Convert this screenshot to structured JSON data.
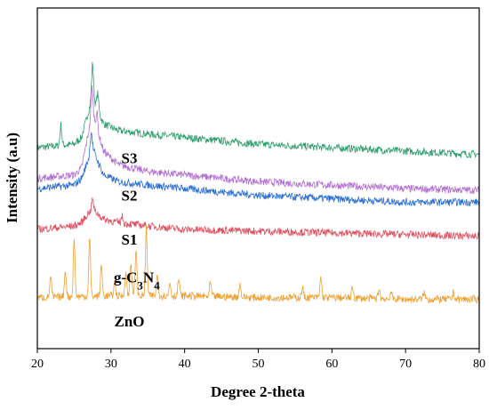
{
  "chart_data": {
    "type": "line",
    "title": "",
    "xlabel": "Degree 2-theta",
    "ylabel": "Intensity (a.u)",
    "xlim": [
      20,
      80
    ],
    "x_ticks": [
      "20",
      "30",
      "40",
      "50",
      "60",
      "70",
      "80"
    ],
    "y_ticks_shown": false,
    "grid": false,
    "legend": "none",
    "series": [
      {
        "name": "S3",
        "color": "#2e9e6b",
        "points": [
          [
            20,
            0.59
          ],
          [
            25,
            0.6
          ],
          [
            26,
            0.62
          ],
          [
            27,
            0.7
          ],
          [
            27.5,
            0.75
          ],
          [
            28,
            0.71
          ],
          [
            29,
            0.66
          ],
          [
            31,
            0.64
          ],
          [
            35,
            0.63
          ],
          [
            40,
            0.62
          ],
          [
            50,
            0.6
          ],
          [
            60,
            0.59
          ],
          [
            70,
            0.58
          ],
          [
            80,
            0.57
          ]
        ],
        "peaks": [
          [
            23.2,
            0.06
          ],
          [
            27.5,
            0.09
          ],
          [
            28.2,
            0.05
          ]
        ]
      },
      {
        "name": "S2",
        "color": "#b46fd6",
        "points": [
          [
            20,
            0.5
          ],
          [
            25,
            0.51
          ],
          [
            26,
            0.53
          ],
          [
            27,
            0.64
          ],
          [
            27.5,
            0.7
          ],
          [
            28,
            0.65
          ],
          [
            29,
            0.58
          ],
          [
            31,
            0.54
          ],
          [
            35,
            0.52
          ],
          [
            40,
            0.51
          ],
          [
            50,
            0.49
          ],
          [
            60,
            0.48
          ],
          [
            70,
            0.47
          ],
          [
            80,
            0.465
          ]
        ],
        "peaks": [
          [
            27.4,
            0.08
          ],
          [
            28.1,
            0.05
          ]
        ]
      },
      {
        "name": "S1",
        "color": "#2b6fd6",
        "points": [
          [
            20,
            0.47
          ],
          [
            25,
            0.48
          ],
          [
            26,
            0.5
          ],
          [
            27,
            0.56
          ],
          [
            27.5,
            0.59
          ],
          [
            28,
            0.56
          ],
          [
            29,
            0.51
          ],
          [
            31,
            0.49
          ],
          [
            35,
            0.48
          ],
          [
            40,
            0.47
          ],
          [
            50,
            0.45
          ],
          [
            60,
            0.44
          ],
          [
            70,
            0.43
          ],
          [
            80,
            0.43
          ]
        ],
        "peaks": [
          [
            27.3,
            0.06
          ]
        ]
      },
      {
        "name": "g-C3N4",
        "color": "#e05060",
        "points": [
          [
            20,
            0.35
          ],
          [
            25,
            0.36
          ],
          [
            26,
            0.37
          ],
          [
            27,
            0.4
          ],
          [
            27.5,
            0.41
          ],
          [
            28,
            0.4
          ],
          [
            29,
            0.38
          ],
          [
            31,
            0.37
          ],
          [
            35,
            0.36
          ],
          [
            40,
            0.35
          ],
          [
            50,
            0.345
          ],
          [
            60,
            0.34
          ],
          [
            70,
            0.335
          ],
          [
            80,
            0.33
          ]
        ],
        "peaks": [
          [
            27.5,
            0.03
          ],
          [
            31.5,
            0.02
          ]
        ]
      },
      {
        "name": "ZnO",
        "color": "#f0a030",
        "points": [
          [
            20,
            0.15
          ],
          [
            30,
            0.155
          ],
          [
            40,
            0.155
          ],
          [
            50,
            0.15
          ],
          [
            60,
            0.15
          ],
          [
            70,
            0.145
          ],
          [
            80,
            0.145
          ]
        ],
        "peaks": [
          [
            21.8,
            0.06
          ],
          [
            23.8,
            0.08
          ],
          [
            25.0,
            0.17
          ],
          [
            27.1,
            0.17
          ],
          [
            28.7,
            0.09
          ],
          [
            30.5,
            0.04
          ],
          [
            32.0,
            0.07
          ],
          [
            32.7,
            0.1
          ],
          [
            33.4,
            0.14
          ],
          [
            34.8,
            0.2
          ],
          [
            36.3,
            0.06
          ],
          [
            38.0,
            0.04
          ],
          [
            39.2,
            0.05
          ],
          [
            43.5,
            0.04
          ],
          [
            47.5,
            0.04
          ],
          [
            56.0,
            0.03
          ],
          [
            58.5,
            0.06
          ],
          [
            62.8,
            0.03
          ],
          [
            66.4,
            0.03
          ],
          [
            68.0,
            0.02
          ],
          [
            72.5,
            0.02
          ],
          [
            76.5,
            0.02
          ]
        ]
      }
    ],
    "series_labels": [
      {
        "text": "S3",
        "x": 32.5,
        "y": 0.545
      },
      {
        "text": "S2",
        "x": 32.5,
        "y": 0.435
      },
      {
        "text": "S1",
        "x": 32.5,
        "y": 0.305
      },
      {
        "text": "g-C3N4",
        "x": 33.5,
        "y": 0.195
      },
      {
        "text": "ZnO",
        "x": 32.5,
        "y": 0.065
      }
    ]
  }
}
